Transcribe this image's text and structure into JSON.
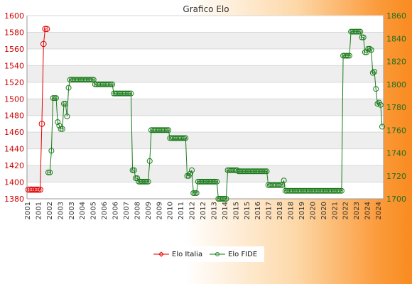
{
  "chart_data": {
    "type": "line",
    "title": "Grafico Elo",
    "grid": true,
    "legend_position": "bottom",
    "left_axis": {
      "ylim": [
        1380,
        1600
      ],
      "ticks": [
        1380,
        1400,
        1420,
        1440,
        1460,
        1480,
        1500,
        1520,
        1540,
        1560,
        1580,
        1600
      ],
      "color": "#cc0000"
    },
    "right_axis": {
      "ylim": [
        1700,
        1860
      ],
      "ticks": [
        1700,
        1720,
        1740,
        1760,
        1780,
        1800,
        1820,
        1840,
        1860
      ],
      "color": "#1f6e1f"
    },
    "x_tick_labels": [
      "2001",
      "2001",
      "2002",
      "2003",
      "2003",
      "2004",
      "2005",
      "2006",
      "2006",
      "2007",
      "2008",
      "2009",
      "2009",
      "2010",
      "2011",
      "2012",
      "2012",
      "2013",
      "2014",
      "2015",
      "2015",
      "2016",
      "2017",
      "2018",
      "2018",
      "2019",
      "2020",
      "2020",
      "2021",
      "2022",
      "2023",
      "2024",
      "2024"
    ],
    "series": [
      {
        "name": "Elo Italia",
        "axis": "left",
        "color": "#e00000",
        "marker": "diamond",
        "values": [
          1391,
          1391,
          1391,
          1391,
          1391,
          1391,
          1391,
          1391,
          1470,
          1566,
          1584,
          1584
        ]
      },
      {
        "name": "Elo FIDE",
        "axis": "right",
        "color": "#1a7a1a",
        "marker": "circle",
        "values": [
          1723,
          1723,
          1742,
          1788,
          1788,
          1788,
          1767,
          1764,
          1761,
          1761,
          1783,
          1783,
          1772,
          1797,
          1804,
          1804,
          1804,
          1804,
          1804,
          1804,
          1804,
          1804,
          1804,
          1804,
          1804,
          1804,
          1804,
          1804,
          1804,
          1804,
          1800,
          1800,
          1800,
          1800,
          1800,
          1800,
          1800,
          1800,
          1800,
          1800,
          1800,
          1800,
          1792,
          1792,
          1792,
          1792,
          1792,
          1792,
          1792,
          1792,
          1792,
          1792,
          1792,
          1792,
          1725,
          1725,
          1718,
          1718,
          1715,
          1715,
          1715,
          1715,
          1715,
          1715,
          1715,
          1733,
          1760,
          1760,
          1760,
          1760,
          1760,
          1760,
          1760,
          1760,
          1760,
          1760,
          1760,
          1760,
          1753,
          1753,
          1753,
          1753,
          1753,
          1753,
          1753,
          1753,
          1753,
          1753,
          1753,
          1720,
          1720,
          1722,
          1725,
          1705,
          1705,
          1705,
          1715,
          1715,
          1715,
          1715,
          1715,
          1715,
          1715,
          1715,
          1715,
          1715,
          1715,
          1715,
          1715,
          1700,
          1700,
          1700,
          1700,
          1700,
          1700,
          1725,
          1725,
          1725,
          1725,
          1725,
          1725,
          1725,
          1724,
          1724,
          1724,
          1724,
          1724,
          1724,
          1724,
          1724,
          1724,
          1724,
          1724,
          1724,
          1724,
          1724,
          1724,
          1724,
          1724,
          1724,
          1724,
          1712,
          1712,
          1712,
          1712,
          1712,
          1712,
          1712,
          1712,
          1712,
          1712,
          1716,
          1707,
          1707,
          1707,
          1707,
          1707,
          1707,
          1707,
          1707,
          1707,
          1707,
          1707,
          1707,
          1707,
          1707,
          1707,
          1707,
          1707,
          1707,
          1707,
          1707,
          1707,
          1707,
          1707,
          1707,
          1707,
          1707,
          1707,
          1707,
          1707,
          1707,
          1707,
          1707,
          1707,
          1707,
          1707,
          1707,
          1707,
          1825,
          1825,
          1825,
          1825,
          1825,
          1846,
          1846,
          1846,
          1846,
          1846,
          1846,
          1846,
          1841,
          1841,
          1828,
          1828,
          1831,
          1831,
          1830,
          1810,
          1811,
          1796,
          1783,
          1784,
          1782,
          1763
        ]
      }
    ]
  }
}
